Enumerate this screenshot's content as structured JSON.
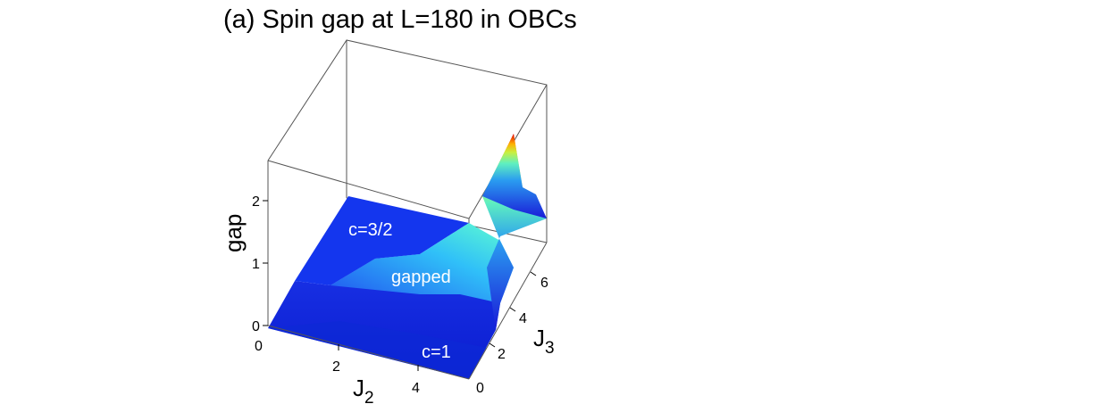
{
  "title": "(a) Spin gap at L=180 in OBCs",
  "chart_data": {
    "type": "surface3d",
    "title": "(a) Spin gap at L=180 in OBCs",
    "xlabel": "J2",
    "ylabel": "J3",
    "zlabel": "gap",
    "x_ticks": [
      "0",
      "2",
      "4"
    ],
    "y_ticks": [
      "0",
      "2",
      "4",
      "6"
    ],
    "z_ticks": [
      "0",
      "1",
      "2"
    ],
    "xlim": [
      0,
      6
    ],
    "ylim": [
      0,
      7.5
    ],
    "zlim": [
      0,
      2.7
    ],
    "colormap": "jet",
    "annotations": [
      "c=3/2",
      "gapped",
      "c=1"
    ],
    "peak": {
      "x": 6,
      "y": 6.3,
      "z": 2.5
    }
  }
}
